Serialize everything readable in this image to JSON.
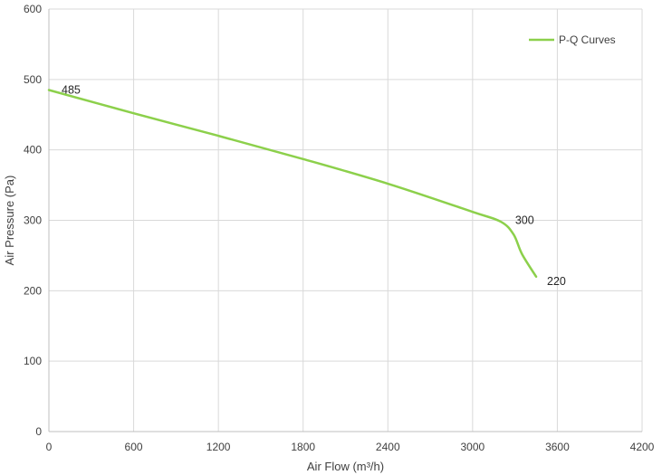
{
  "chart_data": {
    "type": "line",
    "title": "",
    "xlabel": "Air Flow  (m³/h)",
    "ylabel": "Air Pressure  (Pa)",
    "xlim": [
      0,
      4200
    ],
    "ylim": [
      0,
      600
    ],
    "xticks": [
      0,
      600,
      1200,
      1800,
      2400,
      3000,
      3600,
      4200
    ],
    "yticks": [
      0,
      100,
      200,
      300,
      400,
      500,
      600
    ],
    "grid": true,
    "legend_position": "top-right",
    "series": [
      {
        "name": "P-Q Curves",
        "color": "#8CD04B",
        "points": [
          {
            "x": 0,
            "y": 485
          },
          {
            "x": 600,
            "y": 452
          },
          {
            "x": 1200,
            "y": 420
          },
          {
            "x": 1800,
            "y": 387
          },
          {
            "x": 2400,
            "y": 352
          },
          {
            "x": 3000,
            "y": 312
          },
          {
            "x": 3200,
            "y": 298
          },
          {
            "x": 3290,
            "y": 280
          },
          {
            "x": 3350,
            "y": 252
          },
          {
            "x": 3450,
            "y": 220
          }
        ]
      }
    ],
    "annotations": [
      {
        "text": "485",
        "x": 0,
        "y": 485
      },
      {
        "text": "300",
        "x": 3250,
        "y": 300
      },
      {
        "text": "220",
        "x": 3450,
        "y": 220
      }
    ]
  }
}
